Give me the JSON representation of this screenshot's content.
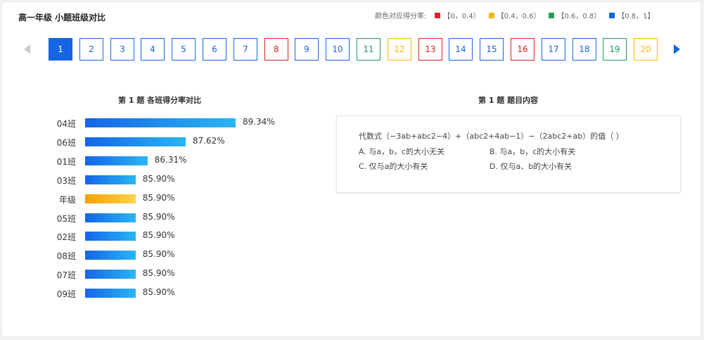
{
  "header": {
    "title": "高一年级 小题班级对比"
  },
  "legend": {
    "label": "颜色对应得分率:",
    "items": [
      {
        "label": "【0，0.4）",
        "color": "#e02020"
      },
      {
        "label": "【0.4，0.6）",
        "color": "#f5b800"
      },
      {
        "label": "【0.6，0.8）",
        "color": "#1aa058"
      },
      {
        "label": "【0.8，1】",
        "color": "#1565e6"
      }
    ]
  },
  "pager": {
    "prev_icon": "chevron-left-icon",
    "next_icon": "chevron-right-icon",
    "active": "1",
    "pages": [
      {
        "label": "1",
        "color": "#1565e6"
      },
      {
        "label": "2",
        "color": "#1565e6"
      },
      {
        "label": "3",
        "color": "#1565e6"
      },
      {
        "label": "4",
        "color": "#1565e6"
      },
      {
        "label": "5",
        "color": "#1565e6"
      },
      {
        "label": "6",
        "color": "#1565e6"
      },
      {
        "label": "7",
        "color": "#1565e6"
      },
      {
        "label": "8",
        "color": "#e02020"
      },
      {
        "label": "9",
        "color": "#1565e6"
      },
      {
        "label": "10",
        "color": "#1565e6"
      },
      {
        "label": "11",
        "color": "#1aa058"
      },
      {
        "label": "12",
        "color": "#f5b800"
      },
      {
        "label": "13",
        "color": "#e02020"
      },
      {
        "label": "14",
        "color": "#1565e6"
      },
      {
        "label": "15",
        "color": "#1565e6"
      },
      {
        "label": "16",
        "color": "#e02020"
      },
      {
        "label": "17",
        "color": "#1565e6"
      },
      {
        "label": "18",
        "color": "#1565e6"
      },
      {
        "label": "19",
        "color": "#1aa058"
      },
      {
        "label": "20",
        "color": "#f5b800"
      }
    ]
  },
  "chart_title": "第 1 题  各班得分率对比",
  "chart_data": {
    "type": "bar",
    "orientation": "horizontal",
    "categories": [
      "04班",
      "06班",
      "01班",
      "03班",
      "年级",
      "05班",
      "02班",
      "08班",
      "07班",
      "09班"
    ],
    "values": [
      89.34,
      87.62,
      86.31,
      85.9,
      85.9,
      85.9,
      85.9,
      85.9,
      85.9,
      85.9
    ],
    "value_labels": [
      "89.34%",
      "87.62%",
      "86.31%",
      "85.90%",
      "85.90%",
      "85.90%",
      "85.90%",
      "85.90%",
      "85.90%",
      "85.90%"
    ],
    "highlight_category": "年级",
    "colors": {
      "bar_start": "#1565e6",
      "bar_end": "#29b6f6",
      "highlight_start": "#f5a000",
      "highlight_end": "#ffd24d"
    },
    "grid": false
  },
  "question": {
    "title": "第 1 题  题目内容",
    "stem": "代数式（−3ab+abc2−4）+（abc2+4ab−1）−（2abc2+ab）的值（      ）",
    "options": [
      "A. 与a，b，c的大小无关",
      "B. 与a，b，c的大小有关",
      "C. 仅与a的大小有关",
      "D. 仅与a、b的大小有关"
    ]
  }
}
